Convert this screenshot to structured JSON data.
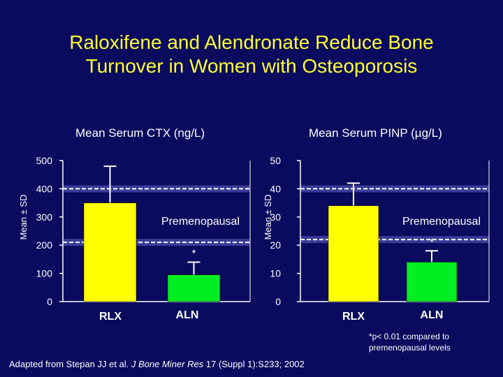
{
  "slide": {
    "title_line1": "Raloxifene and Alendronate Reduce Bone",
    "title_line2": "Turnover in Women with Osteoporosis",
    "footnote_line1": "*p< 0.01 compared to",
    "footnote_line2": "premenopausal levels",
    "source_prefix": "Adapted from Stepan JJ et al. ",
    "source_journal": "J Bone Miner Res",
    "source_suffix": " 17 (Suppl 1):S233; 2002"
  },
  "colors": {
    "background": "#0a0a5e",
    "title": "#ffff33",
    "rlx_bar": "#ffff00",
    "aln_bar": "#00ee22",
    "text": "#ffffff"
  },
  "chart_data": [
    {
      "type": "bar",
      "title": "Mean Serum CTX (ng/L)",
      "ylabel": "Mean ± SD",
      "ylim": [
        0,
        500
      ],
      "yticks": [
        0,
        100,
        200,
        300,
        400,
        500
      ],
      "categories": [
        "RLX",
        "ALN"
      ],
      "values": [
        350,
        95
      ],
      "errors": [
        130,
        45
      ],
      "annotations": [
        "",
        "*"
      ],
      "reference_band": {
        "label": "Premenopausal",
        "range": [
          210,
          400
        ]
      }
    },
    {
      "type": "bar",
      "title": "Mean Serum PINP (µg/L)",
      "ylabel": "Mean ± SD",
      "ylim": [
        0,
        50
      ],
      "yticks": [
        0,
        10,
        20,
        30,
        40,
        50
      ],
      "categories": [
        "RLX",
        "ALN"
      ],
      "values": [
        34,
        14
      ],
      "errors": [
        8,
        4
      ],
      "annotations": [
        "",
        "*"
      ],
      "reference_band": {
        "label": "Premenopausal",
        "range": [
          22,
          40
        ]
      }
    }
  ]
}
